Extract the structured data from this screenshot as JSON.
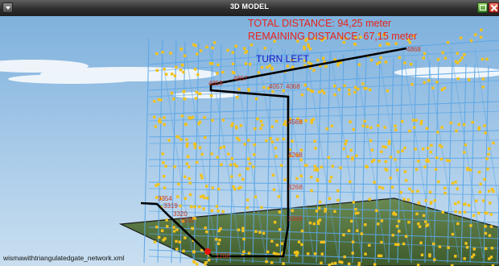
{
  "window": {
    "title": "3D MODEL",
    "controls": {
      "menu_icon": "chevron-down-icon",
      "minimize_icon": "window-icon",
      "close_icon": "close-icon"
    }
  },
  "hud": {
    "total_distance": "TOTAL DISTANCE: 94,25 meter",
    "remaining_distance": "REMAINING DISTANCE: 67,15 meter",
    "instruction": "TURN LEFT"
  },
  "status": {
    "filename": "wismawithtriangulatedgate_network.xml"
  },
  "labels": {
    "top_right": "4868",
    "upper_left": "4858",
    "upper_left_2": "4857",
    "upper_mid": "4057",
    "upper_mid_2": "4068",
    "mid_1": "4568",
    "mid_2": "4268",
    "mid_3": "3268",
    "mid_4": "3368",
    "bottom_left_1": "3354",
    "bottom_left_2": "3319",
    "bottom_left_3": "3320",
    "bottom_left_4": "3330",
    "bottom": "1268"
  },
  "colors": {
    "sky_top": "#7fb1dd",
    "sky_bottom": "#c9dff0",
    "ground": "#56723f",
    "grid_line": "#5aa6e6",
    "node": "#f2c21b",
    "route": "#000000",
    "marker": "#e4160c",
    "hud_text": "#e8231a",
    "instruction_text": "#1414c8",
    "node_label": "#c23a2a"
  }
}
